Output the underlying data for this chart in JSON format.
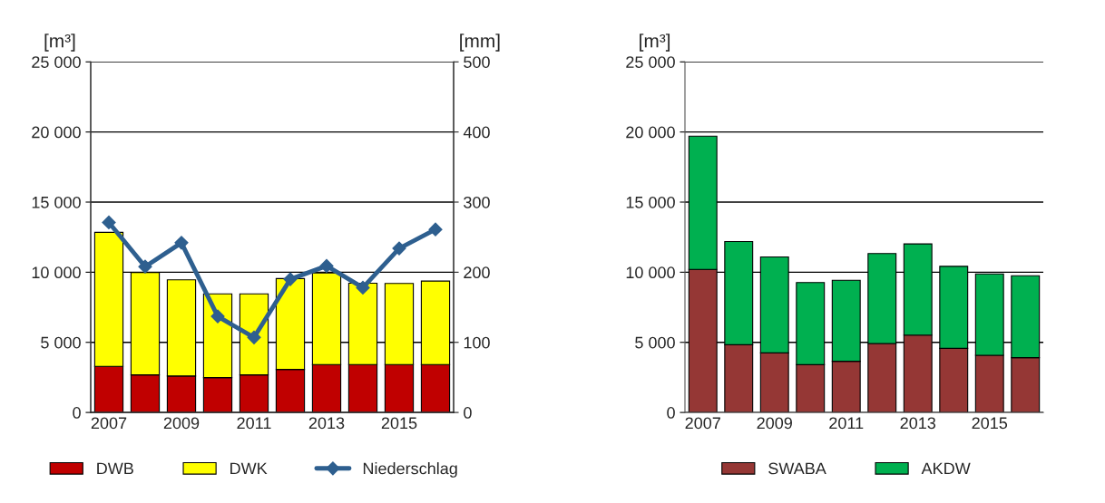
{
  "chart_data": [
    {
      "type": "bar",
      "stacked": true,
      "ylabel": "[m³]",
      "y2label": "[mm]",
      "categories": [
        "2007",
        null,
        "2009",
        null,
        "2011",
        null,
        "2013",
        null,
        "2015",
        null
      ],
      "series": [
        {
          "name": "DWB",
          "color": "#c00000",
          "values": [
            3290,
            2680,
            2600,
            2490,
            2680,
            3070,
            3420,
            3420,
            3420,
            3420
          ]
        },
        {
          "name": "DWK",
          "color": "#ffff00",
          "values": [
            9550,
            7300,
            6860,
            5970,
            5780,
            6480,
            6520,
            5800,
            5780,
            5950
          ]
        },
        {
          "name": "Niederschlag",
          "type": "line",
          "axis": "y2",
          "color": "#2e5f8f",
          "marker": "diamond",
          "values": [
            271,
            208,
            242,
            137,
            107,
            190,
            209,
            178,
            234,
            261
          ]
        }
      ],
      "ylim": [
        0,
        25000
      ],
      "yticks": [
        {
          "value": 0,
          "label": "0"
        },
        {
          "value": 5000,
          "label": "5 000"
        },
        {
          "value": 10000,
          "label": "10 000"
        },
        {
          "value": 15000,
          "label": "15 000"
        },
        {
          "value": 20000,
          "label": "20 000"
        },
        {
          "value": 25000,
          "label": "25 000"
        }
      ],
      "y2lim": [
        0,
        500
      ],
      "y2ticks": [
        0,
        100,
        200,
        300,
        400,
        500
      ],
      "grid": "y",
      "legend": "bottom"
    },
    {
      "type": "bar",
      "stacked": true,
      "ylabel": "[m³]",
      "categories": [
        "2007",
        null,
        "2009",
        null,
        "2011",
        null,
        "2013",
        null,
        "2015",
        null
      ],
      "series": [
        {
          "name": "SWABA",
          "color": "#953735",
          "values": [
            10200,
            4830,
            4250,
            3410,
            3650,
            4920,
            5520,
            4570,
            4080,
            3910
          ]
        },
        {
          "name": "AKDW",
          "color": "#00b050",
          "values": [
            9500,
            7360,
            6840,
            5850,
            5780,
            6410,
            6500,
            5850,
            5800,
            5840
          ]
        }
      ],
      "ylim": [
        0,
        25000
      ],
      "yticks": [
        {
          "value": 0,
          "label": "0"
        },
        {
          "value": 5000,
          "label": "5 000"
        },
        {
          "value": 10000,
          "label": "10 000"
        },
        {
          "value": 15000,
          "label": "15 000"
        },
        {
          "value": 20000,
          "label": "20 000"
        },
        {
          "value": 25000,
          "label": "25 000"
        }
      ],
      "grid": "y",
      "legend": "bottom"
    }
  ]
}
